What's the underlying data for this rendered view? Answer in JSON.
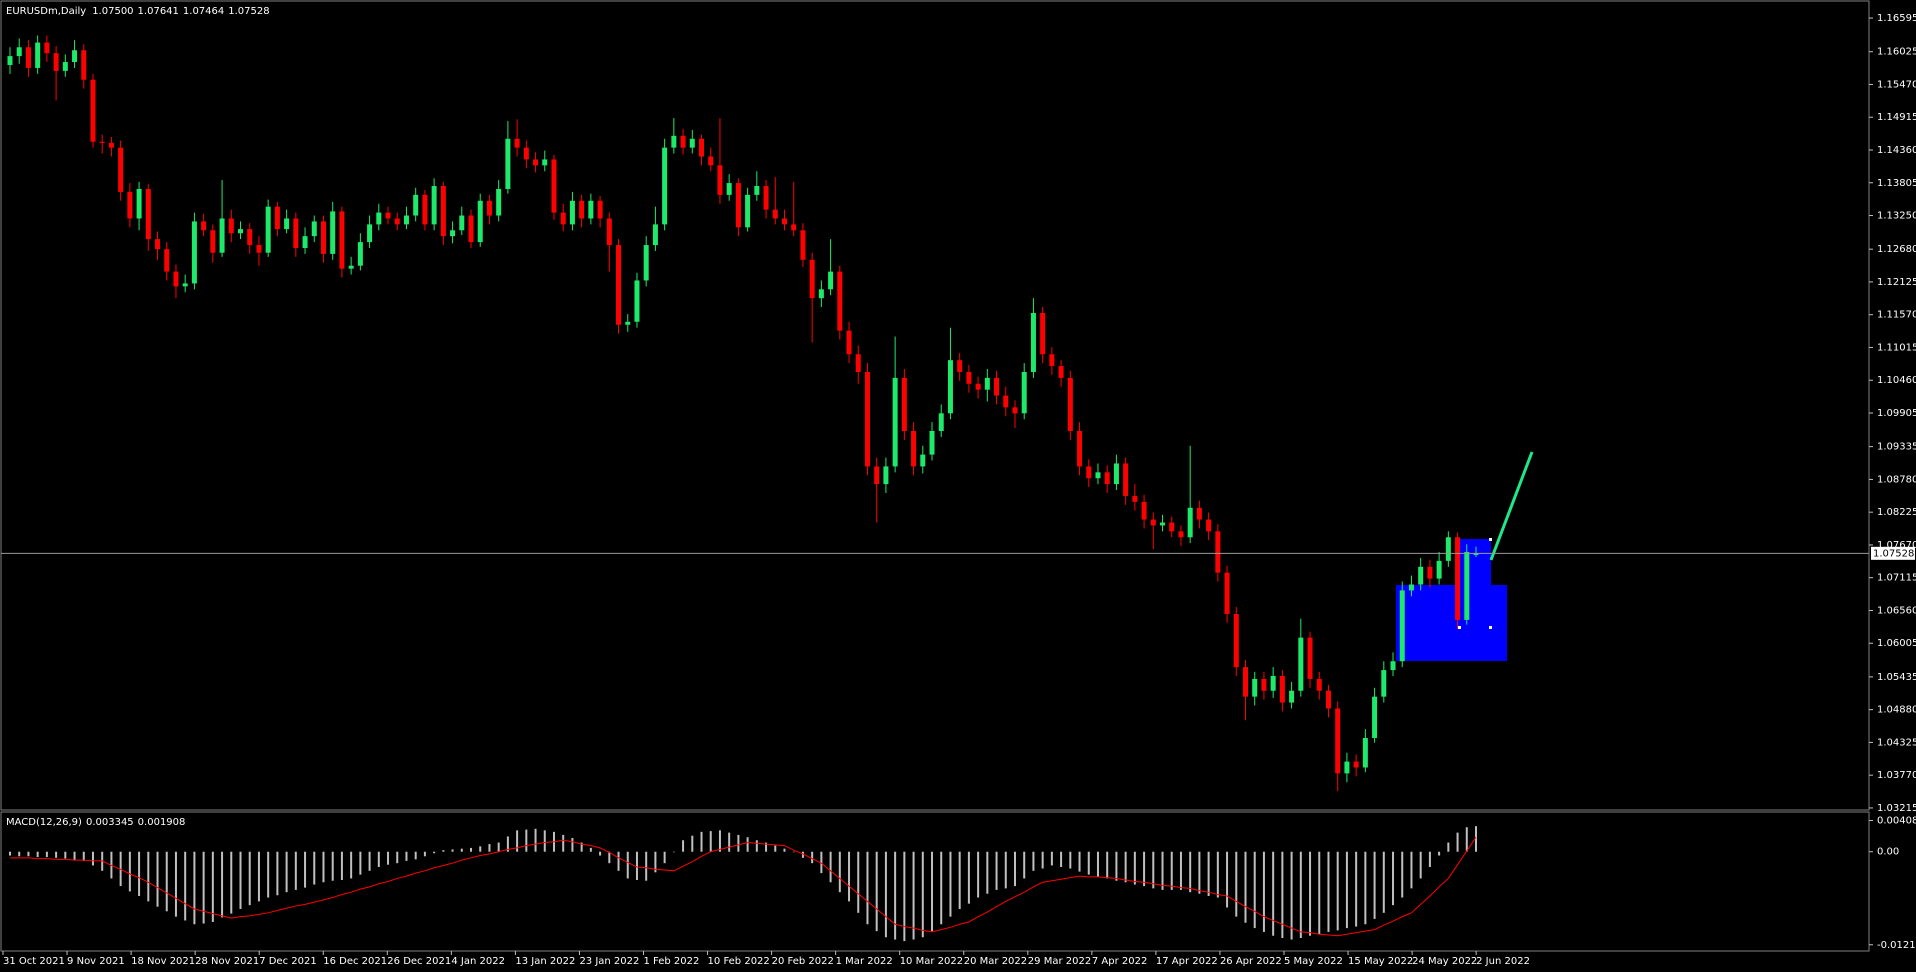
{
  "chart_data": {
    "type": "candlestick",
    "title": "EURUSDm,Daily",
    "header_values": [
      "1.07500",
      "1.07641",
      "1.07464",
      "1.07528"
    ],
    "colors": {
      "up": "#1de96b",
      "down": "#ff0000"
    },
    "open": [
      1.158,
      1.1595,
      1.161,
      1.1575,
      1.1618,
      1.16,
      1.157,
      1.1585,
      1.1605,
      1.1555,
      1.145,
      1.1448,
      1.144,
      1.1365,
      1.132,
      1.137,
      1.1285,
      1.1268,
      1.123,
      1.1205,
      1.121,
      1.1315,
      1.13,
      1.1262,
      1.132,
      1.1295,
      1.1302,
      1.1275,
      1.1262,
      1.134,
      1.1302,
      1.132,
      1.127,
      1.129,
      1.1315,
      1.126,
      1.1332,
      1.1235,
      1.124,
      1.128,
      1.131,
      1.133,
      1.132,
      1.131,
      1.1325,
      1.136,
      1.131,
      1.1375,
      1.129,
      1.13,
      1.1325,
      1.128,
      1.135,
      1.1325,
      1.137,
      1.1455,
      1.144,
      1.142,
      1.141,
      1.142,
      1.133,
      1.131,
      1.135,
      1.132,
      1.135,
      1.132,
      1.1275,
      1.114,
      1.1145,
      1.1215,
      1.1275,
      1.131,
      1.144,
      1.146,
      1.144,
      1.1455,
      1.1425,
      1.141,
      1.136,
      1.138,
      1.1305,
      1.136,
      1.1375,
      1.1335,
      1.132,
      1.131,
      1.13,
      1.125,
      1.1185,
      1.12,
      1.123,
      1.113,
      1.109,
      1.106,
      1.09,
      1.087,
      1.09,
      1.105,
      1.096,
      1.09,
      1.092,
      1.096,
      1.099,
      1.108,
      1.106,
      1.104,
      1.103,
      1.105,
      1.102,
      1.1,
      1.099,
      1.106,
      1.116,
      1.109,
      1.107,
      1.105,
      1.096,
      1.09,
      1.088,
      1.089,
      1.087,
      1.0905,
      1.085,
      1.084,
      1.081,
      1.08,
      1.0805,
      1.079,
      1.078,
      1.083,
      1.081,
      1.079,
      1.072,
      1.065,
      1.056,
      1.051,
      1.054,
      1.052,
      1.0545,
      1.05,
      1.052,
      1.061,
      1.054,
      1.052,
      1.049,
      1.038,
      1.04,
      1.039,
      1.044,
      1.051,
      1.0555,
      1.057,
      1.069,
      1.07,
      1.073,
      1.071,
      1.074,
      1.078,
      1.064,
      1.075
    ],
    "high": [
      1.161,
      1.1625,
      1.1622,
      1.163,
      1.163,
      1.1612,
      1.1598,
      1.1622,
      1.1615,
      1.1565,
      1.1462,
      1.1458,
      1.1452,
      1.138,
      1.1382,
      1.1378,
      1.1298,
      1.128,
      1.1242,
      1.1225,
      1.133,
      1.1328,
      1.131,
      1.1385,
      1.1335,
      1.1315,
      1.1312,
      1.129,
      1.1352,
      1.1348,
      1.1335,
      1.133,
      1.1305,
      1.1325,
      1.1325,
      1.1348,
      1.134,
      1.1255,
      1.1295,
      1.1325,
      1.1345,
      1.134,
      1.133,
      1.134,
      1.1372,
      1.1368,
      1.1388,
      1.1382,
      1.1315,
      1.134,
      1.1335,
      1.1362,
      1.136,
      1.1385,
      1.1485,
      1.1488,
      1.1452,
      1.1432,
      1.1435,
      1.1428,
      1.1345,
      1.1365,
      1.136,
      1.1362,
      1.1358,
      1.133,
      1.1285,
      1.1158,
      1.1228,
      1.129,
      1.134,
      1.1455,
      1.149,
      1.1472,
      1.147,
      1.1462,
      1.144,
      1.149,
      1.1395,
      1.1388,
      1.1372,
      1.14,
      1.1385,
      1.139,
      1.1335,
      1.1382,
      1.1312,
      1.1262,
      1.1215,
      1.1285,
      1.124,
      1.1145,
      1.1105,
      1.1075,
      1.0915,
      1.0915,
      1.112,
      1.1065,
      1.0975,
      1.0935,
      1.0975,
      1.1005,
      1.1135,
      1.1092,
      1.1072,
      1.1052,
      1.1065,
      1.1062,
      1.1035,
      1.1012,
      1.1075,
      1.1185,
      1.117,
      1.1102,
      1.108,
      1.1062,
      1.0975,
      1.0912,
      1.0905,
      1.0902,
      1.092,
      1.0915,
      1.087,
      1.0852,
      1.0822,
      1.0818,
      1.0815,
      1.08,
      1.0935,
      1.0842,
      1.0822,
      1.0802,
      1.0732,
      1.0662,
      1.0572,
      1.0552,
      1.0552,
      1.056,
      1.0555,
      1.0535,
      1.0642,
      1.062,
      1.0552,
      1.053,
      1.0502,
      1.0415,
      1.0412,
      1.0455,
      1.0525,
      1.057,
      1.0585,
      1.0705,
      1.0715,
      1.0745,
      1.0742,
      1.0755,
      1.079,
      1.0788,
      1.0768,
      1.07641
    ],
    "low": [
      1.1565,
      1.1582,
      1.156,
      1.1565,
      1.1585,
      1.152,
      1.156,
      1.1575,
      1.154,
      1.144,
      1.143,
      1.1425,
      1.135,
      1.1305,
      1.13,
      1.1265,
      1.125,
      1.1215,
      1.1185,
      1.1195,
      1.12,
      1.129,
      1.1245,
      1.1255,
      1.128,
      1.1285,
      1.126,
      1.124,
      1.1255,
      1.129,
      1.1295,
      1.1255,
      1.126,
      1.128,
      1.1245,
      1.125,
      1.122,
      1.1225,
      1.1232,
      1.127,
      1.13,
      1.131,
      1.13,
      1.1302,
      1.1315,
      1.13,
      1.13,
      1.1275,
      1.1278,
      1.1292,
      1.127,
      1.1272,
      1.131,
      1.1315,
      1.1362,
      1.1425,
      1.1405,
      1.1398,
      1.14,
      1.1318,
      1.1298,
      1.13,
      1.1305,
      1.131,
      1.1305,
      1.123,
      1.1125,
      1.1128,
      1.1135,
      1.1205,
      1.1265,
      1.13,
      1.143,
      1.1428,
      1.143,
      1.141,
      1.14,
      1.1345,
      1.135,
      1.129,
      1.1298,
      1.135,
      1.132,
      1.131,
      1.13,
      1.129,
      1.1238,
      1.111,
      1.117,
      1.119,
      1.1115,
      1.1075,
      1.104,
      1.0885,
      1.0805,
      1.0855,
      1.089,
      1.0945,
      1.0885,
      1.0888,
      1.091,
      1.095,
      1.098,
      1.1045,
      1.1025,
      1.1015,
      1.101,
      1.1005,
      1.0985,
      1.0965,
      1.098,
      1.105,
      1.1075,
      1.1055,
      1.1035,
      1.0945,
      1.0885,
      1.0865,
      1.087,
      1.0855,
      1.086,
      1.0835,
      1.0825,
      1.0795,
      1.076,
      1.079,
      1.078,
      1.0765,
      1.077,
      1.0795,
      1.0775,
      1.0705,
      1.0635,
      1.0545,
      1.047,
      1.0495,
      1.0505,
      1.0508,
      1.0485,
      1.049,
      1.051,
      1.0525,
      1.0505,
      1.0475,
      1.035,
      1.0365,
      1.0375,
      1.0382,
      1.0432,
      1.05,
      1.0545,
      1.056,
      1.068,
      1.069,
      1.0695,
      1.07,
      1.073,
      1.0625,
      1.0632,
      1.07464
    ],
    "close": [
      1.1595,
      1.161,
      1.1575,
      1.1618,
      1.16,
      1.157,
      1.1585,
      1.1605,
      1.1555,
      1.145,
      1.1448,
      1.144,
      1.1365,
      1.132,
      1.137,
      1.1285,
      1.1268,
      1.123,
      1.1205,
      1.121,
      1.1315,
      1.13,
      1.1262,
      1.132,
      1.1295,
      1.1302,
      1.1275,
      1.1262,
      1.134,
      1.1302,
      1.132,
      1.127,
      1.129,
      1.1315,
      1.126,
      1.1332,
      1.1235,
      1.124,
      1.128,
      1.131,
      1.133,
      1.132,
      1.131,
      1.1325,
      1.136,
      1.131,
      1.1375,
      1.129,
      1.13,
      1.1325,
      1.128,
      1.135,
      1.1325,
      1.137,
      1.1455,
      1.144,
      1.142,
      1.141,
      1.142,
      1.133,
      1.131,
      1.135,
      1.132,
      1.135,
      1.132,
      1.1275,
      1.114,
      1.1145,
      1.1215,
      1.1275,
      1.131,
      1.144,
      1.146,
      1.144,
      1.1455,
      1.1425,
      1.141,
      1.136,
      1.138,
      1.1305,
      1.136,
      1.1375,
      1.1335,
      1.132,
      1.131,
      1.13,
      1.125,
      1.1185,
      1.12,
      1.123,
      1.113,
      1.109,
      1.106,
      1.09,
      1.087,
      1.09,
      1.105,
      1.096,
      1.09,
      1.092,
      1.096,
      1.099,
      1.108,
      1.106,
      1.104,
      1.103,
      1.105,
      1.102,
      1.1,
      1.099,
      1.106,
      1.116,
      1.109,
      1.107,
      1.105,
      1.096,
      1.09,
      1.088,
      1.089,
      1.087,
      1.0905,
      1.085,
      1.084,
      1.081,
      1.08,
      1.0805,
      1.079,
      1.078,
      1.083,
      1.081,
      1.079,
      1.072,
      1.065,
      1.056,
      1.051,
      1.054,
      1.052,
      1.0545,
      1.05,
      1.052,
      1.061,
      1.054,
      1.052,
      1.049,
      1.038,
      1.04,
      1.039,
      1.044,
      1.051,
      1.0555,
      1.057,
      1.069,
      1.07,
      1.073,
      1.071,
      1.074,
      1.078,
      1.064,
      1.0755,
      1.07528
    ],
    "ylim": [
      1.0318,
      1.1685
    ],
    "yticks": [
      1.16595,
      1.16025,
      {
        "value": 1.1547,
        "label": "1.15470"
      },
      1.14915,
      {
        "value": 1.1436,
        "label": "1.14360"
      },
      1.13805,
      {
        "value": 1.1325,
        "label": "1.13250"
      },
      {
        "value": 1.1268,
        "label": "1.12680"
      },
      1.12125,
      {
        "value": 1.1157,
        "label": "1.11570"
      },
      1.11015,
      {
        "value": 1.1046,
        "label": "1.10460"
      },
      1.09905,
      1.09335,
      {
        "value": 1.0878,
        "label": "1.08780"
      },
      1.08225,
      {
        "value": 1.0767,
        "label": "1.07670"
      },
      1.07115,
      {
        "value": 1.0656,
        "label": "1.06560"
      },
      1.06005,
      1.05435,
      {
        "value": 1.0488,
        "label": "1.04880"
      },
      1.04325,
      {
        "value": 1.0377,
        "label": "1.03770"
      },
      1.03215
    ],
    "current_price": {
      "value": 1.07528,
      "label": "1.07528"
    },
    "xtick_labels": [
      "31 Oct 2021",
      "9 Nov 2021",
      "18 Nov 2021",
      "28 Nov 2021",
      "7 Dec 2021",
      "16 Dec 2021",
      "26 Dec 2021",
      "4 Jan 2022",
      "13 Jan 2022",
      "23 Jan 2022",
      "1 Feb 2022",
      "10 Feb 2022",
      "20 Feb 2022",
      "1 Mar 2022",
      "10 Mar 2022",
      "20 Mar 2022",
      "29 Mar 2022",
      "7 Apr 2022",
      "17 Apr 2022",
      "26 Apr 2022",
      "5 May 2022",
      "15 May 2022",
      "24 May 2022",
      "2 Jun 2022"
    ],
    "indicator": {
      "type": "macd",
      "title": "MACD(12,26,9)",
      "value_labels": [
        "0.003345",
        "0.001908"
      ],
      "histogram_color": "#c0c0c0",
      "signal_color": "#ff0000",
      "histogram": [
        -0.0005,
        -0.0006,
        -0.0006,
        -0.0007,
        -0.0007,
        -0.0008,
        -0.0009,
        -0.0011,
        -0.0012,
        -0.0018,
        -0.0025,
        -0.0035,
        -0.0045,
        -0.0052,
        -0.0058,
        -0.0065,
        -0.0072,
        -0.0078,
        -0.0085,
        -0.009,
        -0.0095,
        -0.0094,
        -0.0092,
        -0.0086,
        -0.0081,
        -0.0075,
        -0.007,
        -0.0065,
        -0.006,
        -0.0057,
        -0.0053,
        -0.005,
        -0.0047,
        -0.0043,
        -0.004,
        -0.0038,
        -0.0037,
        -0.0035,
        -0.003,
        -0.0025,
        -0.002,
        -0.0017,
        -0.0015,
        -0.0012,
        -0.001,
        -0.0006,
        -0.0002,
        0.0002,
        0.0003,
        0.0004,
        0.0005,
        0.0007,
        0.001,
        0.0012,
        0.002,
        0.0028,
        0.0029,
        0.003,
        0.0028,
        0.0026,
        0.0022,
        0.0018,
        0.0012,
        0.0005,
        -0.0005,
        -0.0015,
        -0.0025,
        -0.0035,
        -0.0037,
        -0.0038,
        -0.0027,
        -0.0015,
        0,
        0.0015,
        0.0021,
        0.0026,
        0.0027,
        0.0028,
        0.0025,
        0.0022,
        0.0019,
        0.0015,
        0.0012,
        0.0008,
        0.0004,
        0,
        -0.0008,
        -0.0015,
        -0.0028,
        -0.004,
        -0.0053,
        -0.0065,
        -0.008,
        -0.0095,
        -0.0104,
        -0.0112,
        -0.0115,
        -0.0117,
        -0.0115,
        -0.0112,
        -0.0104,
        -0.0095,
        -0.0085,
        -0.0075,
        -0.0068,
        -0.006,
        -0.0055,
        -0.005,
        -0.0048,
        -0.0045,
        -0.0035,
        -0.0025,
        -0.0022,
        -0.0018,
        -0.002,
        -0.0022,
        -0.0026,
        -0.003,
        -0.0033,
        -0.0035,
        -0.0038,
        -0.004,
        -0.0043,
        -0.0045,
        -0.0048,
        -0.005,
        -0.005,
        -0.005,
        -0.0053,
        -0.0055,
        -0.0058,
        -0.006,
        -0.0073,
        -0.0085,
        -0.0093,
        -0.01,
        -0.0105,
        -0.011,
        -0.0113,
        -0.0115,
        -0.0113,
        -0.011,
        -0.0108,
        -0.0105,
        -0.0103,
        -0.01,
        -0.0098,
        -0.0095,
        -0.0088,
        -0.008,
        -0.007,
        -0.006,
        -0.0048,
        -0.0035,
        -0.002,
        -0.0005,
        0.0012,
        0.0025,
        0.0032,
        0.003345
      ],
      "signal": [
        -0.0008,
        -0.0008,
        -0.0008,
        -0.0009,
        -0.0009,
        -0.001,
        -0.001,
        -0.0011,
        -0.0011,
        -0.0012,
        -0.0012,
        -0.0018,
        -0.0023,
        -0.0029,
        -0.0034,
        -0.004,
        -0.0047,
        -0.0054,
        -0.0061,
        -0.0068,
        -0.0075,
        -0.0078,
        -0.0081,
        -0.0084,
        -0.0087,
        -0.0085,
        -0.0084,
        -0.0082,
        -0.008,
        -0.0077,
        -0.0074,
        -0.0071,
        -0.0069,
        -0.0066,
        -0.0063,
        -0.006,
        -0.0056,
        -0.0053,
        -0.0049,
        -0.0046,
        -0.0042,
        -0.0039,
        -0.0035,
        -0.0032,
        -0.0028,
        -0.0025,
        -0.0021,
        -0.0018,
        -0.0015,
        -0.0011,
        -0.0008,
        -0.0005,
        -0.0003,
        0,
        0.0003,
        0.0005,
        0.0008,
        0.001,
        0.0012,
        0.0013,
        0.0015,
        0.0013,
        0.001,
        0.0008,
        0.0005,
        -0.0001,
        -0.0008,
        -0.0014,
        -0.002,
        -0.0021,
        -0.0023,
        -0.0024,
        -0.0025,
        -0.0019,
        -0.0013,
        -0.0006,
        0,
        0.0003,
        0.0006,
        0.0009,
        0.0012,
        0.0011,
        0.001,
        0.0009,
        0.0008,
        0.0002,
        -0.0003,
        -0.0009,
        -0.0015,
        -0.0025,
        -0.0035,
        -0.0045,
        -0.0055,
        -0.0065,
        -0.0075,
        -0.0085,
        -0.0095,
        -0.0098,
        -0.01,
        -0.0103,
        -0.0105,
        -0.0102,
        -0.0099,
        -0.0095,
        -0.0092,
        -0.0085,
        -0.0079,
        -0.0072,
        -0.0065,
        -0.0059,
        -0.0053,
        -0.0046,
        -0.004,
        -0.0038,
        -0.0036,
        -0.0034,
        -0.0032,
        -0.0033,
        -0.0033,
        -0.0034,
        -0.0035,
        -0.0037,
        -0.0039,
        -0.004,
        -0.0042,
        -0.0044,
        -0.0045,
        -0.0047,
        -0.0048,
        -0.0051,
        -0.0053,
        -0.0056,
        -0.0058,
        -0.0065,
        -0.0072,
        -0.0078,
        -0.0085,
        -0.009,
        -0.0095,
        -0.01,
        -0.0105,
        -0.0106,
        -0.0108,
        -0.0109,
        -0.011,
        -0.0108,
        -0.0106,
        -0.0104,
        -0.0102,
        -0.0096,
        -0.0091,
        -0.0085,
        -0.008,
        -0.0069,
        -0.0058,
        -0.0046,
        -0.0035,
        -0.0017,
        0.0001,
        0.001908
      ],
      "ylim": [
        -0.013,
        0.0052
      ],
      "yticks": [
        0.004085,
        {
          "value": 0,
          "label": "0.00"
        },
        -0.012183
      ]
    }
  }
}
